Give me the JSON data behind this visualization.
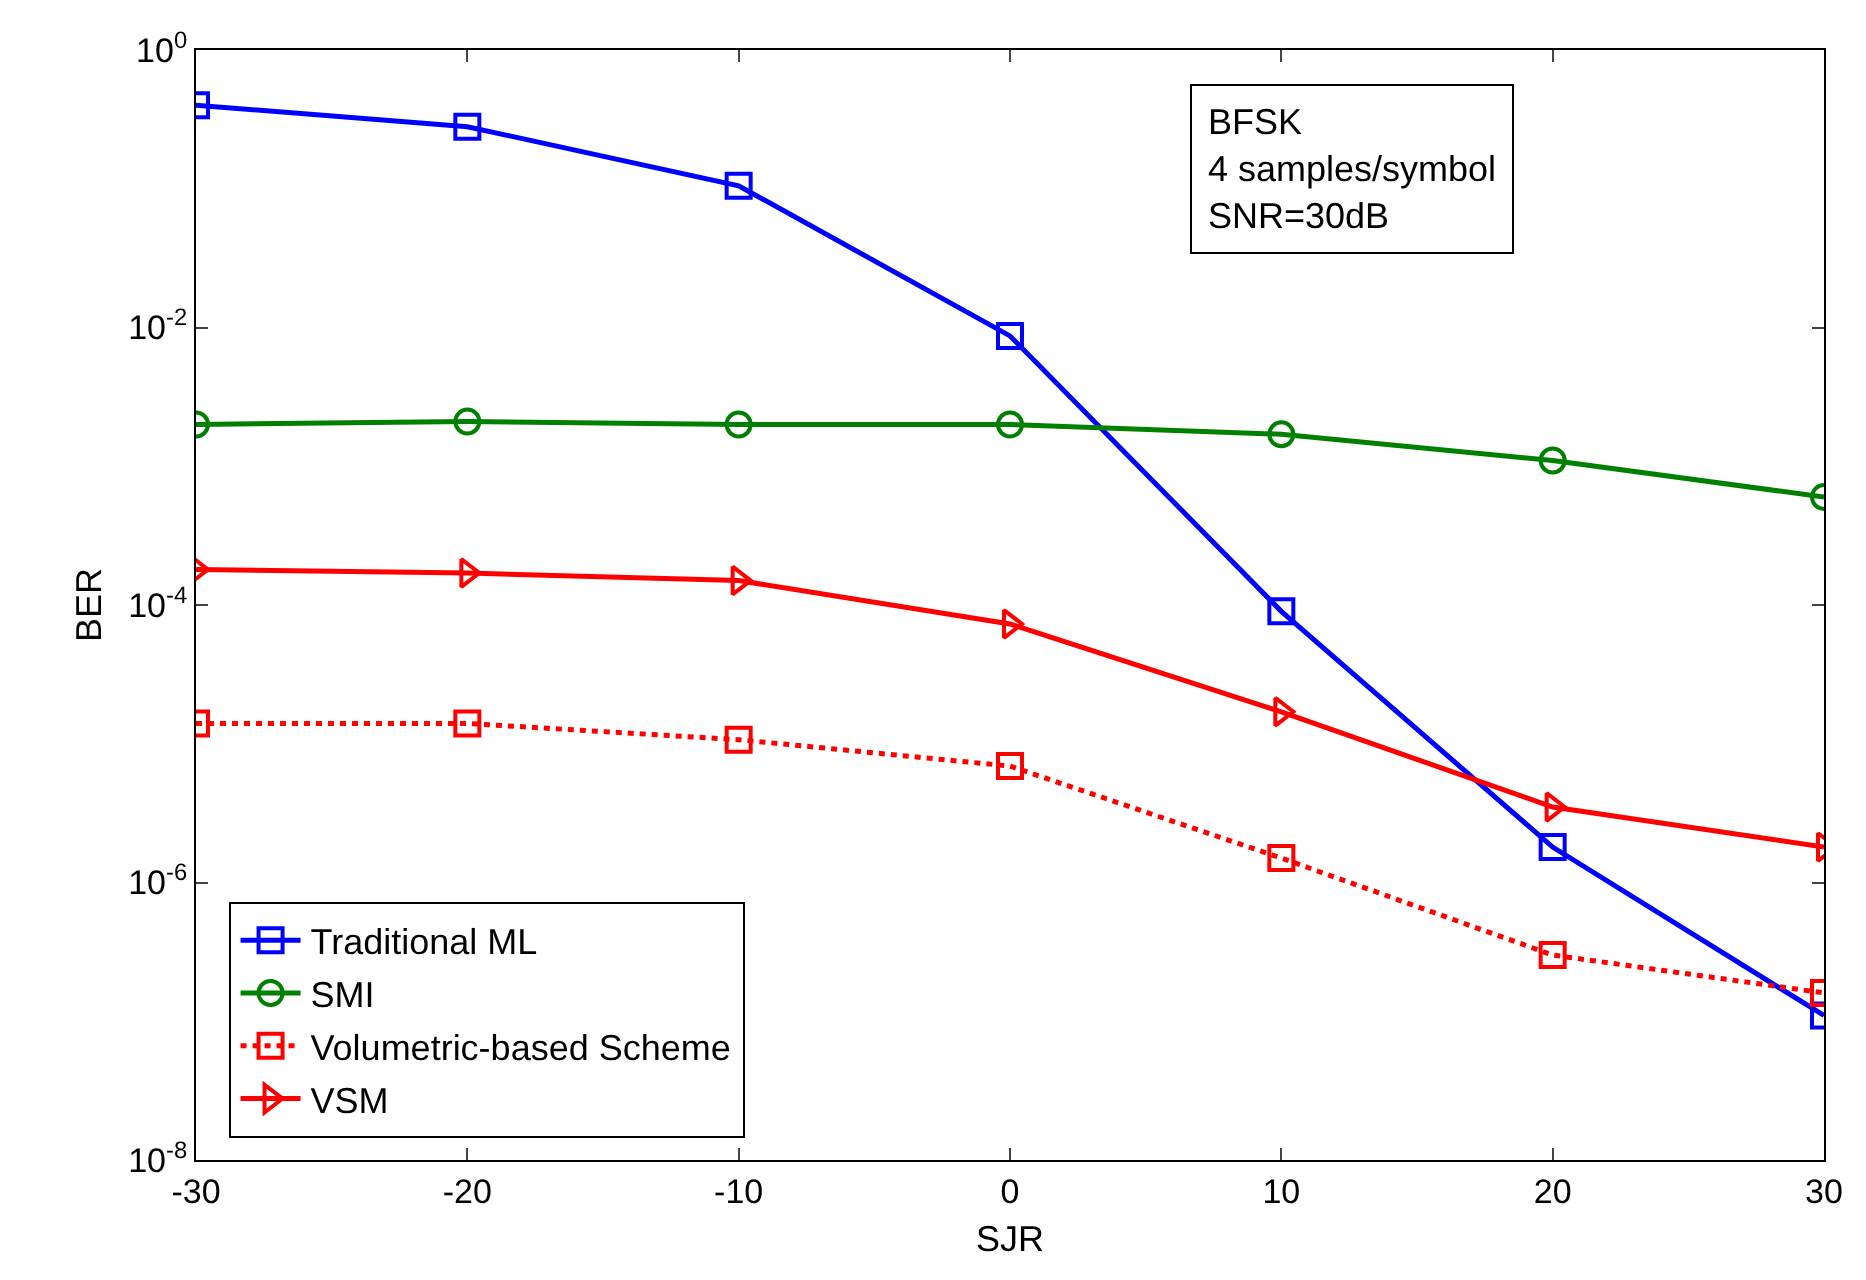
{
  "chart_data": {
    "type": "line",
    "xlabel": "SJR",
    "ylabel": "BER",
    "log": "y",
    "grid": false,
    "legend": "bottom left",
    "annotations": [
      "BFSK",
      "4 samples/symbol",
      "SNR=30dB"
    ],
    "x": [
      -30,
      -20,
      -10,
      0,
      10,
      20,
      30
    ],
    "xlim": [
      -30,
      30
    ],
    "xticks": [
      -30,
      -20,
      -10,
      0,
      10,
      20,
      30
    ],
    "ylim": [
      1e-08,
      1
    ],
    "yticks": [
      {
        "value": 1e-08,
        "label": "10$^{-8}$"
      },
      {
        "value": 1e-06,
        "label": "10$^{-6}$"
      },
      {
        "value": 0.0001,
        "label": "10$^{-4}$"
      },
      {
        "value": 0.01,
        "label": "10$^{-2}$"
      },
      {
        "value": 1,
        "label": "10$^{0}$"
      }
    ],
    "series": [
      {
        "name": "Traditional ML",
        "color": "#0000ff",
        "marker": "square",
        "line_style": "solid",
        "values": [
          0.4,
          0.28,
          0.105,
          0.0087,
          9e-05,
          1.8e-06,
          1.1e-07
        ]
      },
      {
        "name": "SMI",
        "color": "#008000",
        "marker": "circle",
        "line_style": "solid",
        "values": [
          0.002,
          0.0021,
          0.002,
          0.002,
          0.0017,
          0.0011,
          0.0006
        ]
      },
      {
        "name": "Volumetric-based Scheme",
        "color": "#ff0000",
        "marker": "square",
        "line_style": "dotted",
        "values": [
          1.4e-05,
          1.4e-05,
          1.07e-05,
          6.9e-06,
          1.5e-06,
          3e-07,
          1.6e-07
        ]
      },
      {
        "name": "VSM",
        "color": "#ff0000",
        "marker": "triangle",
        "line_style": "solid",
        "values": [
          0.00018,
          0.00017,
          0.00015,
          7.3e-05,
          1.7e-05,
          3.5e-06,
          1.8e-06
        ]
      }
    ]
  }
}
